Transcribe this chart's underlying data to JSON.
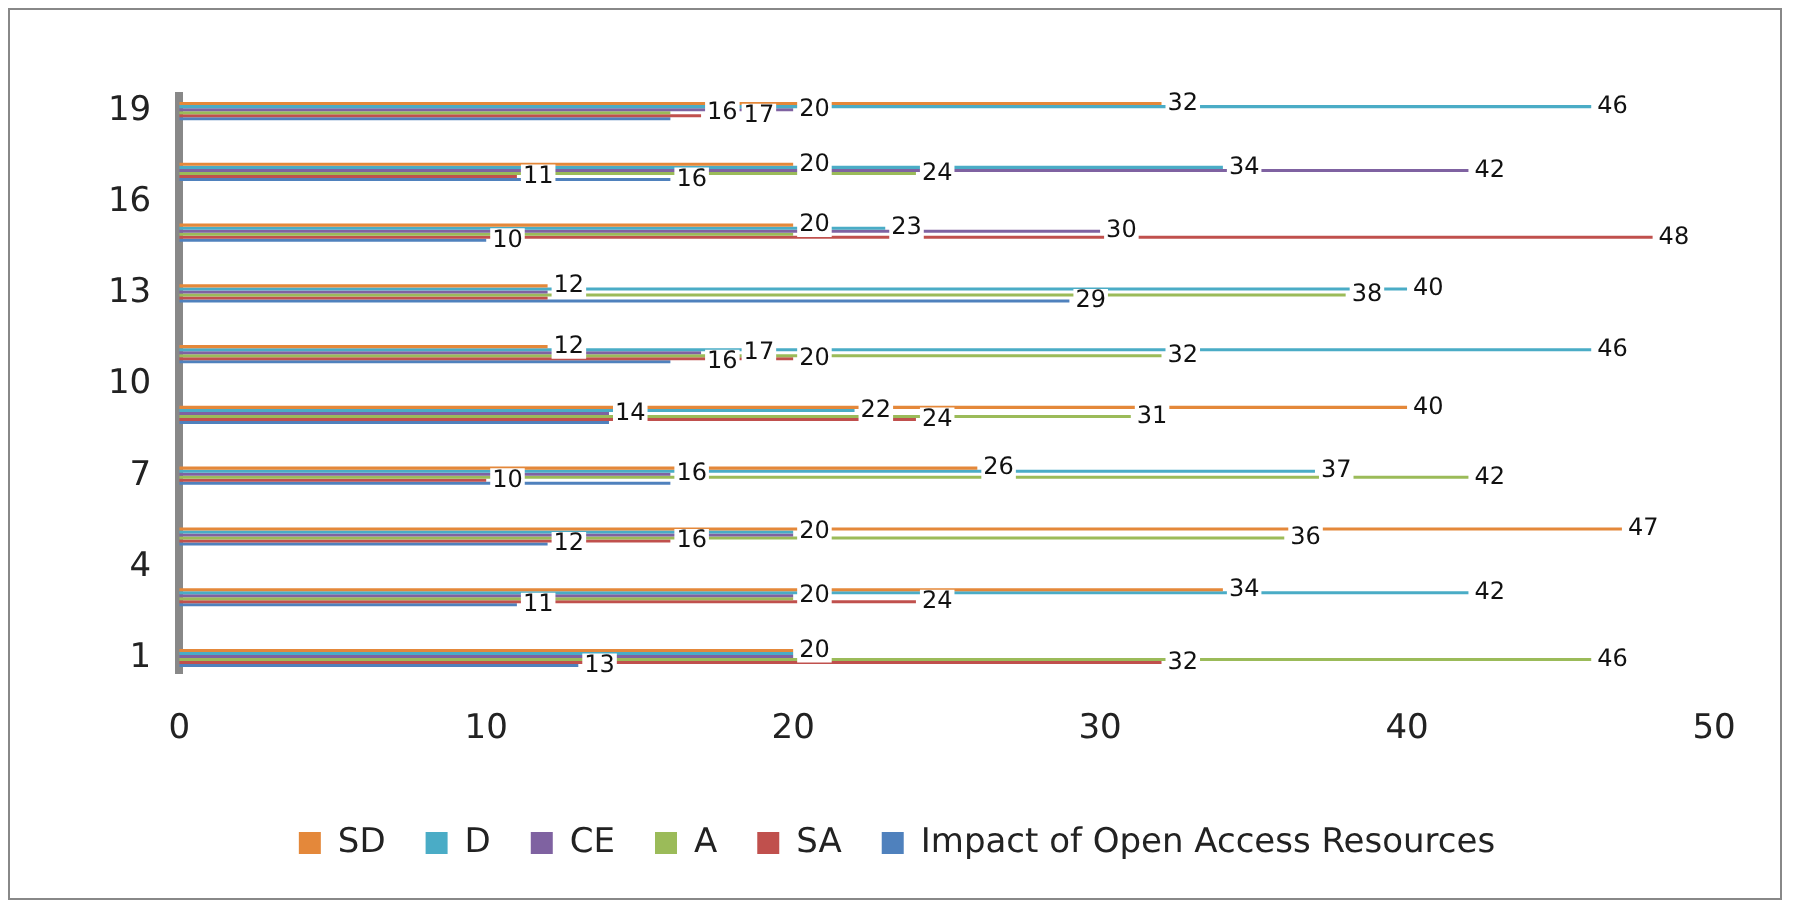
{
  "chart_data": {
    "type": "bar",
    "orientation": "horizontal",
    "categories": [
      "19",
      null,
      null,
      "16",
      null,
      null,
      "13",
      null,
      null,
      "10",
      null,
      null,
      "7",
      null,
      null,
      "4",
      null,
      null,
      "1"
    ],
    "series": [
      {
        "name": "SD",
        "color": "#e4883a",
        "values": [
          32,
          null,
          20,
          null,
          20,
          null,
          12,
          null,
          12,
          null,
          40,
          null,
          26,
          null,
          47,
          null,
          34,
          null,
          20
        ],
        "value_labels": [
          "32",
          null,
          "20",
          null,
          "20",
          null,
          "12",
          null,
          "12",
          null,
          "40",
          null,
          "26",
          null,
          "47",
          null,
          "34",
          null,
          "20"
        ]
      },
      {
        "name": "D",
        "color": "#4aacc6",
        "values": [
          46,
          null,
          34,
          null,
          23,
          null,
          40,
          null,
          46,
          null,
          22,
          null,
          37,
          null,
          20,
          null,
          42,
          null,
          20
        ],
        "value_labels": [
          "46",
          null,
          "34",
          null,
          "23",
          null,
          "40",
          null,
          "46",
          null,
          "22",
          null,
          "37",
          null,
          "20",
          null,
          "42",
          null,
          null
        ]
      },
      {
        "name": "CE",
        "color": "#7f62a1",
        "values": [
          20,
          null,
          42,
          null,
          30,
          null,
          12,
          null,
          17,
          null,
          14,
          null,
          16,
          null,
          20,
          null,
          20,
          null,
          20
        ],
        "value_labels": [
          "20",
          null,
          "42",
          null,
          "30",
          null,
          null,
          null,
          "17",
          null,
          "14",
          null,
          "16",
          null,
          null,
          null,
          "20",
          null,
          null
        ]
      },
      {
        "name": "A",
        "color": "#9bbb59",
        "values": [
          16,
          null,
          24,
          null,
          20,
          null,
          38,
          null,
          32,
          null,
          31,
          null,
          42,
          null,
          36,
          null,
          20,
          null,
          46
        ],
        "value_labels": [
          "16",
          null,
          "24",
          null,
          null,
          null,
          "38",
          null,
          "32",
          null,
          "31",
          null,
          "42",
          null,
          "36",
          null,
          null,
          null,
          "46"
        ]
      },
      {
        "name": "SA",
        "color": "#c0504d",
        "values": [
          17,
          null,
          11,
          null,
          48,
          null,
          12,
          null,
          20,
          null,
          24,
          null,
          10,
          null,
          16,
          null,
          24,
          null,
          32
        ],
        "value_labels": [
          "17",
          null,
          "11",
          null,
          "48",
          null,
          null,
          null,
          "20",
          null,
          "24",
          null,
          "10",
          null,
          "16",
          null,
          "24",
          null,
          "32"
        ]
      },
      {
        "name": "Impact of Open Access Resources",
        "color": "#4f81bd",
        "values": [
          16,
          null,
          16,
          null,
          10,
          null,
          29,
          null,
          16,
          null,
          14,
          null,
          16,
          null,
          12,
          null,
          11,
          null,
          13
        ],
        "value_labels": [
          null,
          null,
          "16",
          null,
          "10",
          null,
          "29",
          null,
          "16",
          null,
          null,
          null,
          null,
          null,
          "12",
          null,
          "11",
          null,
          "13"
        ]
      }
    ],
    "xlim": [
      0,
      50
    ],
    "xticks": [
      0,
      10,
      20,
      30,
      40,
      50
    ],
    "grid": false,
    "legend": "bottom"
  }
}
